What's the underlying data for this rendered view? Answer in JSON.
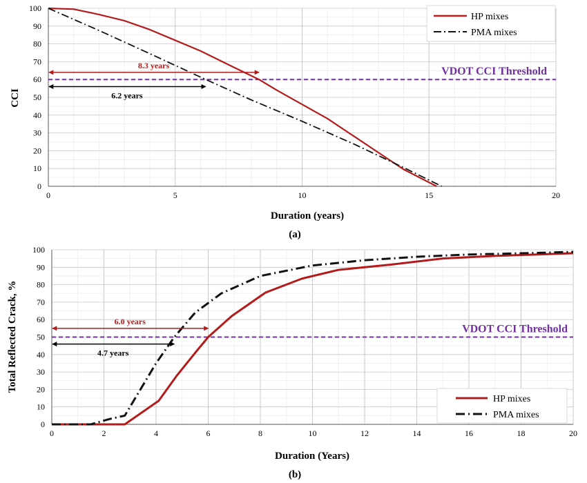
{
  "colors": {
    "hp": "#b31b1b",
    "pma": "#111111",
    "threshold": "#7030a0",
    "grid_major": "#c8c8c8",
    "grid_minor": "#ececec"
  },
  "chart_data": [
    {
      "type": "line",
      "panel_label": "(a)",
      "xlabel": "Duration (years)",
      "ylabel": "CCI",
      "xlim": [
        0,
        20
      ],
      "ylim": [
        0,
        100
      ],
      "xticks": [
        "0",
        "5",
        "10",
        "15",
        "20"
      ],
      "yticks": [
        "0",
        "10",
        "20",
        "30",
        "40",
        "50",
        "60",
        "70",
        "80",
        "90",
        "100"
      ],
      "grid": true,
      "legend_position": "top-right",
      "series": [
        {
          "name": "HP mixes",
          "style": "solid",
          "color": "#b31b1b",
          "x": [
            0,
            1,
            2,
            3,
            4,
            5,
            6,
            7,
            8.3,
            9,
            10,
            11,
            12,
            13,
            14,
            15.3
          ],
          "y": [
            100,
            99.5,
            96.5,
            93,
            88,
            82,
            76,
            69,
            60,
            54,
            46,
            38,
            28.5,
            19,
            9.5,
            0
          ]
        },
        {
          "name": "PMA mixes",
          "style": "dashdot",
          "color": "#111111",
          "x": [
            0,
            2,
            4,
            6.2,
            8,
            10,
            12,
            14,
            15.5
          ],
          "y": [
            100,
            87.5,
            74.5,
            60,
            48.5,
            36.5,
            24,
            10.5,
            0
          ]
        }
      ],
      "threshold": {
        "label": "VDOT CCI Threshold",
        "y": 60
      },
      "annotations": [
        {
          "label": "8.3 years",
          "value": 8.3,
          "y": 64,
          "color": "#b31b1b"
        },
        {
          "label": "6.2 years",
          "value": 6.2,
          "y": 56,
          "color": "#000000"
        }
      ]
    },
    {
      "type": "line",
      "panel_label": "(b)",
      "xlabel": "Duration (Years)",
      "ylabel": "Total Reflected Crack, %",
      "xlim": [
        0,
        20
      ],
      "ylim": [
        0,
        100
      ],
      "xticks": [
        "0",
        "2",
        "4",
        "6",
        "8",
        "10",
        "12",
        "14",
        "16",
        "18",
        "20"
      ],
      "yticks": [
        "0",
        "10",
        "20",
        "30",
        "40",
        "50",
        "60",
        "70",
        "80",
        "90",
        "100"
      ],
      "grid": true,
      "legend_position": "bottom-right",
      "series": [
        {
          "name": "HP mixes",
          "style": "solid",
          "color": "#b31b1b",
          "x": [
            0,
            1,
            2.8,
            4.1,
            4.8,
            5.5,
            6.0,
            6.9,
            8.2,
            9.6,
            11,
            13,
            15,
            17,
            20
          ],
          "y": [
            0,
            0,
            0,
            13.5,
            28,
            41,
            50,
            62,
            75.5,
            83.5,
            88.5,
            91.5,
            95,
            96.5,
            98
          ]
        },
        {
          "name": "PMA mixes",
          "style": "dashdot",
          "color": "#111111",
          "x": [
            0,
            1.5,
            2.2,
            2.8,
            4,
            4.7,
            5.5,
            6.5,
            8,
            10,
            12,
            14,
            16,
            18,
            20
          ],
          "y": [
            0,
            0,
            3,
            5,
            35,
            50,
            64,
            75,
            85,
            91,
            94,
            96,
            97.3,
            98,
            98.8
          ]
        }
      ],
      "threshold": {
        "label": "VDOT CCI Threshold",
        "y": 50
      },
      "annotations": [
        {
          "label": "6.0 years",
          "value": 6.0,
          "y": 55,
          "color": "#b31b1b"
        },
        {
          "label": "4.7 years",
          "value": 4.7,
          "y": 46,
          "color": "#000000"
        }
      ]
    }
  ]
}
